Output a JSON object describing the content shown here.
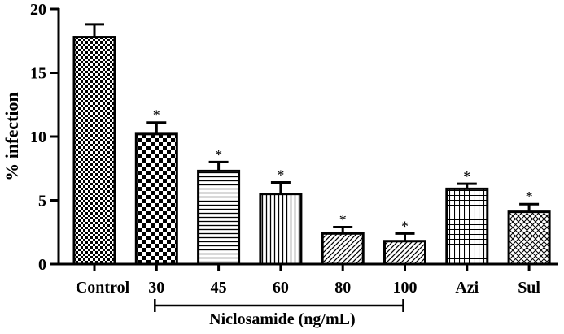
{
  "chart_data": {
    "type": "bar",
    "ylabel": "% infection",
    "ylim": [
      0,
      20
    ],
    "yticks": [
      0,
      5,
      10,
      15,
      20
    ],
    "categories": [
      "Control",
      "30",
      "45",
      "60",
      "80",
      "100",
      "Azi",
      "Sul"
    ],
    "values": [
      17.8,
      10.2,
      7.3,
      5.5,
      2.4,
      1.8,
      5.9,
      4.1
    ],
    "errors": [
      1.0,
      0.9,
      0.7,
      0.9,
      0.5,
      0.6,
      0.4,
      0.6
    ],
    "significance": [
      "",
      "*",
      "*",
      "*",
      "*",
      "*",
      "*",
      "*"
    ],
    "patterns": [
      "fine-checker",
      "checker",
      "horizontal-lines",
      "vertical-lines",
      "diagonal",
      "diagonal",
      "grid",
      "crosshatch"
    ],
    "group_bracket": {
      "label": "Niclosamide (ng/mL)",
      "from_category": 1,
      "to_category": 5
    },
    "legend": null,
    "grid": false
  }
}
